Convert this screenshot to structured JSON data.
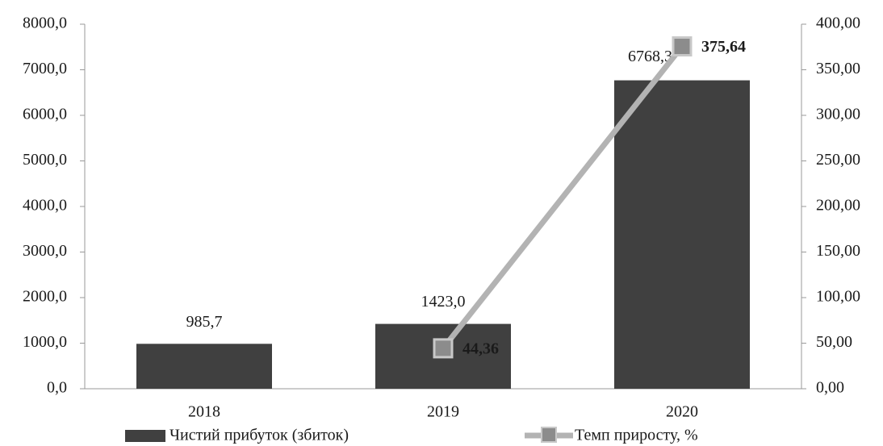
{
  "chart_data": {
    "type": "bar",
    "categories": [
      "2018",
      "2019",
      "2020"
    ],
    "series": [
      {
        "name": "Чистий прибуток (збиток)",
        "color": "#404040",
        "values": [
          985.7,
          1423.0,
          6768.3
        ],
        "value_labels": [
          "985,7",
          "1423,0",
          "6768,3"
        ]
      },
      {
        "name": "Темп приросту, %",
        "color": "#b3b3b3",
        "type": "line",
        "axis": "y2",
        "values": [
          null,
          44.36,
          375.64
        ],
        "value_labels": [
          null,
          "44,36",
          "375,64"
        ]
      }
    ],
    "ylim": [
      0,
      8000
    ],
    "yticks": [
      {
        "value": 0,
        "label": "0,0"
      },
      {
        "value": 1000,
        "label": "1000,0"
      },
      {
        "value": 2000,
        "label": "2000,0"
      },
      {
        "value": 3000,
        "label": "3000,0"
      },
      {
        "value": 4000,
        "label": "4000,0"
      },
      {
        "value": 5000,
        "label": "5000,0"
      },
      {
        "value": 6000,
        "label": "6000,0"
      },
      {
        "value": 7000,
        "label": "7000,0"
      },
      {
        "value": 8000,
        "label": "8000,0"
      }
    ],
    "y2lim": [
      0,
      400
    ],
    "y2ticks": [
      {
        "value": 0,
        "label": "0,00"
      },
      {
        "value": 50,
        "label": "50,00"
      },
      {
        "value": 100,
        "label": "100,00"
      },
      {
        "value": 150,
        "label": "150,00"
      },
      {
        "value": 200,
        "label": "200,00"
      },
      {
        "value": 250,
        "label": "250,00"
      },
      {
        "value": 300,
        "label": "300,00"
      },
      {
        "value": 350,
        "label": "350,00"
      },
      {
        "value": 400,
        "label": "400,00"
      }
    ],
    "grid": false,
    "legend": "bottom"
  }
}
